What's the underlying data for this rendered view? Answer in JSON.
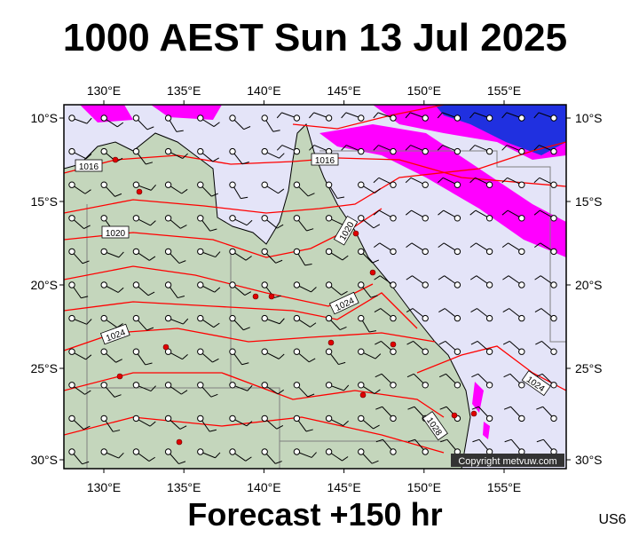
{
  "header": {
    "title": "1000 AEST Sun 13 Jul 2025"
  },
  "map": {
    "lon_labels": [
      "130°E",
      "135°E",
      "140°E",
      "145°E",
      "150°E",
      "155°E"
    ],
    "lat_labels": [
      "10°S",
      "15°S",
      "20°S",
      "25°S",
      "30°S"
    ],
    "isobar_labels": [
      "1016",
      "1016",
      "1020",
      "1020",
      "1024",
      "1024",
      "1024",
      "1028"
    ],
    "copyright": "Copyright metvuw.com"
  },
  "footer": {
    "caption": "Forecast +150 hr",
    "region": "US6"
  }
}
